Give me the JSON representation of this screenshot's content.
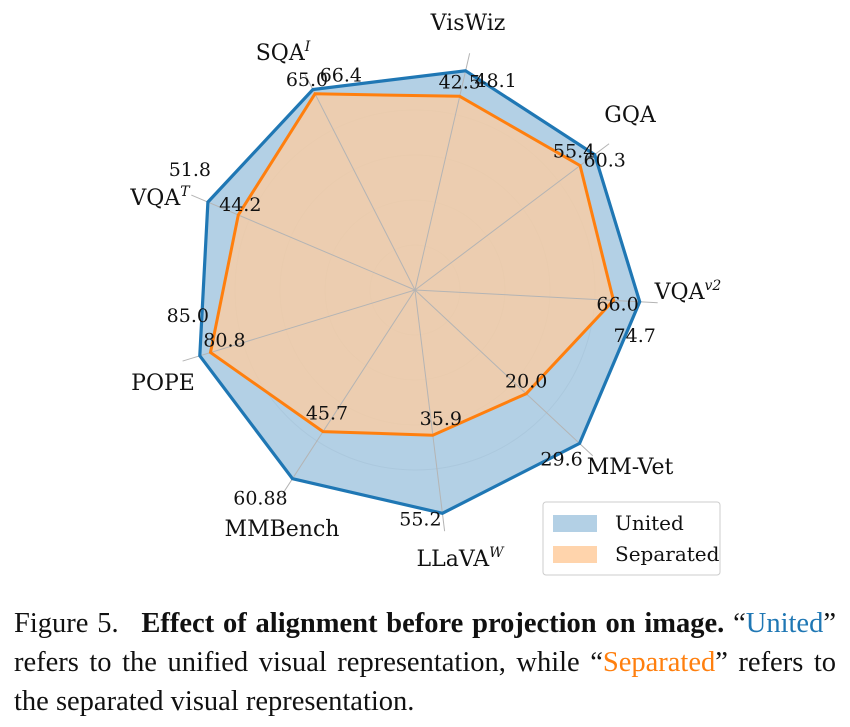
{
  "chart_data": {
    "type": "radar",
    "axes": [
      {
        "name": "VisWiz",
        "sup": ""
      },
      {
        "name": "GQA",
        "sup": ""
      },
      {
        "name": "VQA",
        "sup": "v2"
      },
      {
        "name": "MM-Vet",
        "sup": ""
      },
      {
        "name": "LLaVA",
        "sup": "W"
      },
      {
        "name": "MMBench",
        "sup": ""
      },
      {
        "name": "POPE",
        "sup": ""
      },
      {
        "name": "VQA",
        "sup": "T"
      },
      {
        "name": "SQA",
        "sup": "I"
      }
    ],
    "series": [
      {
        "name": "United",
        "color": "#1f77b4",
        "fill": "#a6c8e0",
        "values": [
          48.1,
          60.3,
          74.7,
          29.6,
          55.2,
          60.88,
          85.0,
          51.8,
          66.4
        ],
        "labels": [
          "48.1",
          "60.3",
          "74.7",
          "29.6",
          "55.2",
          "60.88",
          "85.0",
          "51.8",
          "66.4"
        ]
      },
      {
        "name": "Separated",
        "color": "#ff7f0e",
        "fill": "#ffcc9e",
        "values": [
          42.5,
          55.4,
          66.0,
          20.0,
          35.9,
          45.7,
          80.8,
          44.2,
          65.0
        ],
        "labels": [
          "42.5",
          "55.4",
          "66.0",
          "20.0",
          "35.9",
          "45.7",
          "80.8",
          "44.2",
          "65.0"
        ]
      }
    ],
    "legend": {
      "position": "bottom-right"
    },
    "grid": true
  },
  "caption": {
    "label": "Figure 5.",
    "title": "Effect of alignment before projection on image.",
    "q1": "“",
    "united": "United",
    "mid": "” refers to the unified visual representation, while “",
    "separated": "Separated",
    "end": "” refers to the separated visual representation."
  }
}
